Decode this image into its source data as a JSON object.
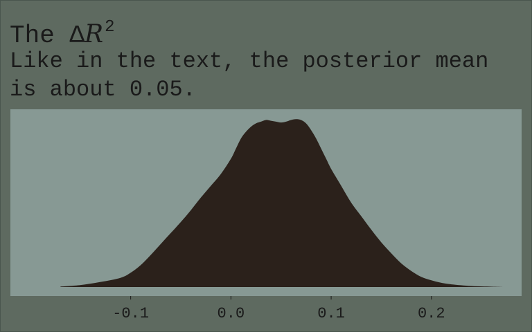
{
  "title": {
    "prefix": "The ",
    "symbol": "Δ",
    "variable": "R",
    "superscript": "2"
  },
  "subtitle": "Like in the text, the posterior mean is about 0.05.",
  "colors": {
    "background": "#5e6a60",
    "panel": "#879994",
    "fill": "#2b211b",
    "text": "#1a1a1a"
  },
  "chart_data": {
    "type": "area",
    "title": "The ΔR²",
    "subtitle": "Like in the text, the posterior mean is about 0.05.",
    "xlabel": "",
    "ylabel": "",
    "xlim": [
      -0.22,
      0.29
    ],
    "ylim": [
      0,
      1.05
    ],
    "x_ticks": [
      -0.1,
      0.0,
      0.1,
      0.2
    ],
    "x_tick_labels": [
      "-0.1",
      "0.0",
      "0.1",
      "0.2"
    ],
    "grid": false,
    "y_axis_shown": false,
    "series": [
      {
        "x": [
          -0.17,
          -0.15,
          -0.13,
          -0.11,
          -0.1,
          -0.09,
          -0.08,
          -0.07,
          -0.06,
          -0.05,
          -0.04,
          -0.03,
          -0.02,
          -0.01,
          0.0,
          0.005,
          0.01,
          0.015,
          0.02,
          0.025,
          0.03,
          0.035,
          0.04,
          0.045,
          0.05,
          0.055,
          0.06,
          0.065,
          0.07,
          0.075,
          0.08,
          0.085,
          0.09,
          0.095,
          0.1,
          0.11,
          0.12,
          0.13,
          0.14,
          0.15,
          0.16,
          0.17,
          0.18,
          0.19,
          0.2,
          0.21,
          0.22,
          0.24,
          0.26,
          0.272
        ],
        "y": [
          0.003,
          0.012,
          0.03,
          0.055,
          0.085,
          0.13,
          0.19,
          0.255,
          0.32,
          0.385,
          0.455,
          0.53,
          0.6,
          0.67,
          0.76,
          0.82,
          0.88,
          0.92,
          0.95,
          0.97,
          0.98,
          0.99,
          0.985,
          0.98,
          0.975,
          0.98,
          0.99,
          0.995,
          0.99,
          0.97,
          0.93,
          0.88,
          0.82,
          0.76,
          0.7,
          0.6,
          0.5,
          0.42,
          0.34,
          0.265,
          0.2,
          0.14,
          0.095,
          0.06,
          0.04,
          0.025,
          0.016,
          0.006,
          0.002,
          0.0
        ]
      }
    ]
  }
}
